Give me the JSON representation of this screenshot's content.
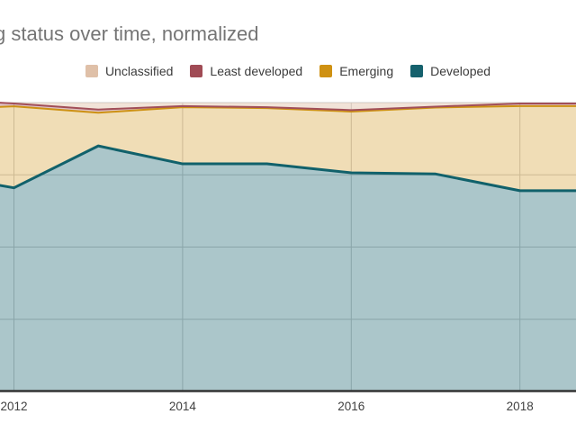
{
  "title": "g status over time, normalized",
  "legend": {
    "items": [
      {
        "label": "Unclassified",
        "color": "#dfc0a8"
      },
      {
        "label": "Least developed",
        "color": "#a04b55"
      },
      {
        "label": "Emerging",
        "color": "#cf9112"
      },
      {
        "label": "Developed",
        "color": "#15616d"
      }
    ]
  },
  "x_axis": {
    "tick_labels": [
      "2012",
      "2014",
      "2016",
      "2018"
    ]
  },
  "colors": {
    "title_text": "#757575",
    "legend_text": "#3b3b3b",
    "tick_text": "#404040",
    "gridline": "#cccccc",
    "axis_line": "#333333",
    "background": "#ffffff"
  },
  "chart_data": {
    "type": "area",
    "stacked": true,
    "normalized": true,
    "title": "g status over time, normalized",
    "xlabel": "",
    "ylabel": "",
    "ylim": [
      0,
      100
    ],
    "grid": true,
    "legend_position": "top",
    "x_ticks": [
      2012,
      2014,
      2016,
      2018
    ],
    "y_gridlines_pct": [
      25,
      50,
      75,
      100
    ],
    "visible_x_range": [
      2011.8,
      2018.7
    ],
    "x": [
      2011.8,
      2012,
      2013,
      2014,
      2015,
      2016,
      2017,
      2018,
      2018.7
    ],
    "series": [
      {
        "name": "Developed",
        "values": [
          71.5,
          70.5,
          85.0,
          78.8,
          78.8,
          75.7,
          75.3,
          69.5,
          69.5
        ],
        "line_color": "#11616b",
        "fill": "rgba(21,97,109,0.36)",
        "line_width": 3
      },
      {
        "name": "Emerging",
        "values": [
          27.0,
          28.2,
          11.5,
          19.6,
          19.3,
          21.2,
          23.0,
          29.3,
          29.3
        ],
        "line_color": "#cd9114",
        "fill": "rgba(205,145,20,0.31)",
        "line_width": 2
      },
      {
        "name": "Least developed",
        "values": [
          1.5,
          1.0,
          1.1,
          0.4,
          0.3,
          0.5,
          0.3,
          0.9,
          0.9
        ],
        "line_color": "#a14e58",
        "fill": "rgba(161,78,88,0.35)",
        "line_width": 2
      },
      {
        "name": "Unclassified",
        "values": [
          0.0,
          0.3,
          2.4,
          1.2,
          1.6,
          2.6,
          1.4,
          0.3,
          0.3
        ],
        "line_color": null,
        "fill": "rgba(223,192,168,0.45)",
        "line_width": 0
      }
    ]
  }
}
